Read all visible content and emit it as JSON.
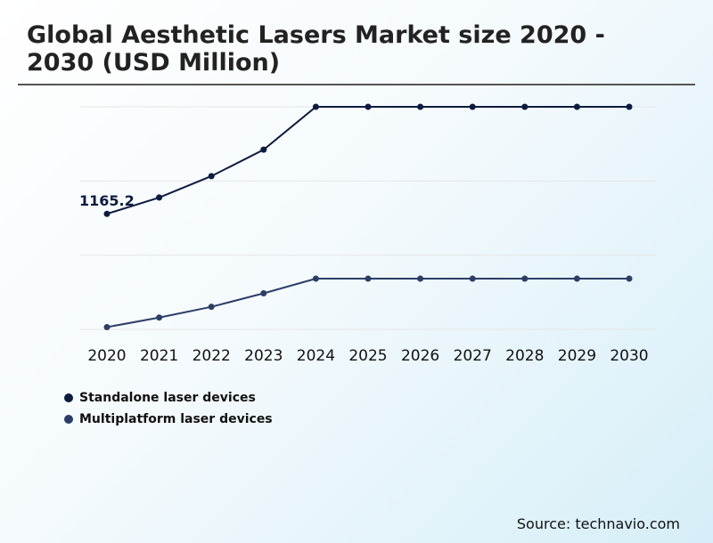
{
  "title": "Global Aesthetic Lasers Market size 2020 - 2030 (USD Million)",
  "source": "Source: technavio.com",
  "colors": {
    "standalone": "#0d1b3e",
    "multiplatform": "#2c3e66",
    "grid": "#e6e6e6"
  },
  "chart_data": {
    "type": "line",
    "title": "Global Aesthetic Lasers Market size 2020 - 2030 (USD Million)",
    "categories": [
      "2020",
      "2021",
      "2022",
      "2023",
      "2024",
      "2025",
      "2026",
      "2027",
      "2028",
      "2029",
      "2030"
    ],
    "series": [
      {
        "name": "Standalone laser devices",
        "values": [
          1165.2,
          1310,
          1500,
          1735,
          2115,
          2115,
          2115,
          2115,
          2115,
          2115,
          2115
        ]
      },
      {
        "name": "Multiplatform laser devices",
        "values": [
          160,
          245,
          340,
          460,
          590,
          590,
          590,
          590,
          590,
          590,
          590
        ]
      }
    ],
    "annotations": [
      {
        "series": 0,
        "index": 0,
        "label": "1165.2"
      }
    ],
    "ylim": [
      140,
      2115
    ],
    "grid": true,
    "y_ticks_shown": false,
    "legend": "bottom-left"
  }
}
